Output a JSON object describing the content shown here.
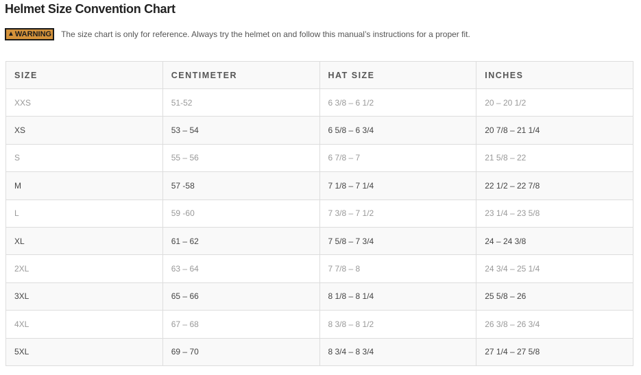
{
  "title": "Helmet Size Convention Chart",
  "warning": {
    "badge": "WARNING",
    "icon": "warning-triangle-icon",
    "text": "The size chart is only for reference. Always try the helmet on and follow this manual’s instructions for a proper fit."
  },
  "table": {
    "headers": [
      "SIZE",
      "CENTIMETER",
      "HAT SIZE",
      "INCHES"
    ],
    "rows": [
      [
        "XXS",
        "51-52",
        "6 3/8 – 6 1/2",
        "20 – 20 1/2"
      ],
      [
        "XS",
        "53 – 54",
        "6 5/8 – 6 3/4",
        "20 7/8 – 21 1/4"
      ],
      [
        "S",
        "55 – 56",
        "6 7/8 – 7",
        "21 5/8 – 22"
      ],
      [
        "M",
        "57 -58",
        "7 1/8 – 7 1/4",
        "22 1/2 – 22 7/8"
      ],
      [
        "L",
        "59 -60",
        "7 3/8 – 7 1/2",
        "23 1/4 – 23 5/8"
      ],
      [
        "XL",
        "61 – 62",
        "7 5/8 – 7 3/4",
        "24 – 24 3/8"
      ],
      [
        "2XL",
        "63 – 64",
        "7 7/8 – 8",
        "24 3/4 – 25 1/4"
      ],
      [
        "3XL",
        "65 – 66",
        "8 1/8 – 8 1/4",
        "25 5/8 – 26"
      ],
      [
        "4XL",
        "67 – 68",
        "8 3/8 – 8 1/2",
        "26 3/8 – 26 3/4"
      ],
      [
        "5XL",
        "69 – 70",
        "8 3/4 – 8 3/4",
        "27 1/4 – 27 5/8"
      ]
    ]
  },
  "colors": {
    "warning_badge": "#d4923a"
  }
}
